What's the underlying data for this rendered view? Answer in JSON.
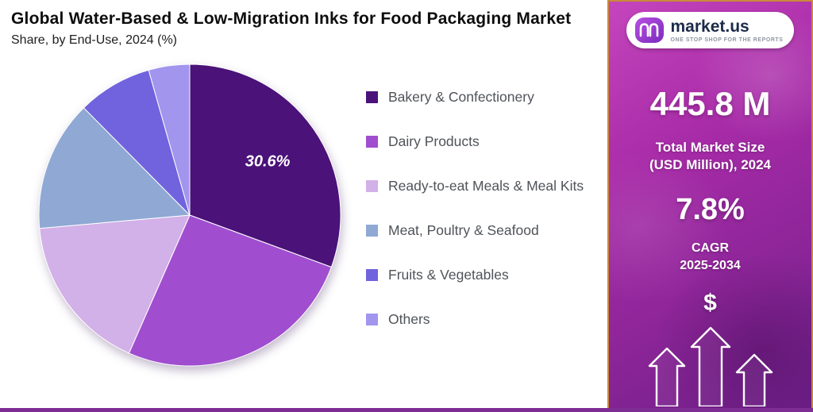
{
  "header": {
    "title": "Global Water-Based & Low-Migration Inks for Food Packaging Market",
    "subtitle": "Share, by End-Use, 2024 (%)"
  },
  "chart_data": {
    "type": "pie",
    "categories": [
      "Bakery & Confectionery",
      "Dairy Products",
      "Ready-to-eat Meals & Meal Kits",
      "Meat, Poultry & Seafood",
      "Fruits & Vegetables",
      "Others"
    ],
    "values": [
      30.6,
      26.0,
      17.0,
      14.0,
      8.0,
      4.4
    ],
    "colors": [
      "#4b1279",
      "#a04ecf",
      "#d2b0e8",
      "#8fa9d4",
      "#7163dd",
      "#a195ee"
    ],
    "visible_label": {
      "slice": "Bakery & Confectionery",
      "text": "30.6%"
    },
    "legend_position": "right",
    "start_angle_deg": 0,
    "direction": "clockwise"
  },
  "panel": {
    "logo": {
      "brand": "market.us",
      "tagline": "ONE STOP SHOP FOR THE REPORTS"
    },
    "market_size": {
      "value": "445.8 M",
      "label_line1": "Total Market Size",
      "label_line2": "(USD Million), 2024"
    },
    "cagr": {
      "value": "7.8%",
      "label_line1": "CAGR",
      "label_line2": "2025-2034"
    },
    "dollar_symbol": "$"
  },
  "colors": {
    "panel_border": "#c98a3a",
    "bottom_bar": "#7d2d94",
    "panel_gradient_top": "#c445bc",
    "panel_gradient_bottom": "#6e1f87",
    "legend_text": "#4f5358",
    "title_text": "#0d0d0d"
  }
}
